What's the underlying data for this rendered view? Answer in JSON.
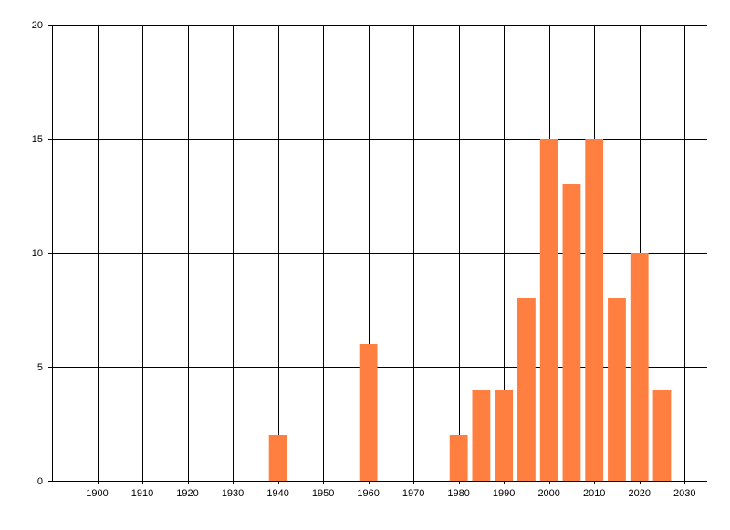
{
  "chart_data": {
    "type": "bar",
    "title": "",
    "xlabel": "",
    "ylabel": "",
    "x": [
      1940,
      1960,
      1980,
      1985,
      1990,
      1995,
      2000,
      2005,
      2010,
      2015,
      2020,
      2025
    ],
    "values": [
      2,
      6,
      2,
      4,
      4,
      8,
      15,
      13,
      15,
      8,
      10,
      4
    ],
    "bar_width_years": 4,
    "xlim": [
      1890,
      2035
    ],
    "ylim": [
      0,
      20
    ],
    "xticks": [
      1900,
      1910,
      1920,
      1930,
      1940,
      1950,
      1960,
      1970,
      1980,
      1990,
      2000,
      2010,
      2020,
      2030
    ],
    "yticks": [
      0,
      5,
      10,
      15,
      20
    ],
    "grid": true,
    "legend": "none",
    "bar_color": "#FF7F40",
    "grid_color": "#000000"
  }
}
